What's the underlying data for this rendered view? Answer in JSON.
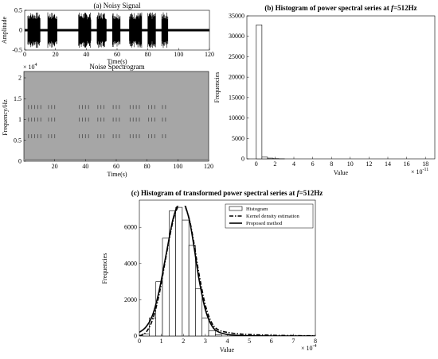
{
  "colors": {
    "axis": "#000000",
    "spectrogram_bg": "#a6a6a6",
    "spectrogram_marks": "#555555",
    "bar_fill": "#ffffff",
    "signal": "#000000"
  },
  "chart_data": [
    {
      "id": "a",
      "type": "line",
      "title": "(a) Noisy Signal",
      "xlabel": "Time(s)",
      "ylabel": "Amplitude",
      "xlim": [
        0,
        120
      ],
      "ylim": [
        -0.5,
        0.5
      ],
      "xticks": [
        0,
        20,
        40,
        60,
        80,
        100,
        120
      ],
      "yticks": [
        -0.5,
        0,
        0.5
      ],
      "burst_groups_seconds": [
        [
          2,
          10
        ],
        [
          15,
          21
        ],
        [
          35,
          43
        ],
        [
          47,
          53
        ],
        [
          57,
          62
        ],
        [
          68,
          76
        ],
        [
          80,
          85
        ],
        [
          89,
          93
        ]
      ],
      "burst_amplitude": 0.45,
      "baseline_noise_amplitude": 0.03
    },
    {
      "id": "spectrogram",
      "type": "heatmap",
      "title": "Noise Spectrogram",
      "xlabel": "Time(s)",
      "ylabel": "Frequency/Hz",
      "xlim": [
        0,
        120
      ],
      "ylim": [
        0,
        20000
      ],
      "xticks": [
        20,
        40,
        60,
        80,
        100,
        120
      ],
      "yticks": [
        0,
        0.5,
        1,
        1.5,
        2
      ],
      "y_exponent": "× 10",
      "y_exponent_power": "4",
      "mark_rows_x10e4": [
        0.6,
        1.0,
        1.3
      ],
      "mark_times_seconds": [
        3,
        5,
        7,
        9,
        11,
        16,
        18,
        20,
        36,
        38,
        40,
        42,
        48,
        50,
        52,
        58,
        60,
        62,
        69,
        71,
        73,
        75,
        81,
        83,
        85,
        90,
        92
      ]
    },
    {
      "id": "b",
      "type": "bar",
      "title": "(b) Histogram of power spectral series at f=512Hz",
      "title_prefix": "(b) Histogram of power spectral series at ",
      "title_var": "f",
      "title_suffix": "=512Hz",
      "xlabel": "Value",
      "ylabel": "Frequencies",
      "xlim": [
        -1,
        19
      ],
      "ylim": [
        0,
        35000
      ],
      "xticks": [
        0,
        2,
        4,
        6,
        8,
        10,
        12,
        14,
        16,
        18
      ],
      "yticks": [
        0,
        5000,
        10000,
        15000,
        20000,
        25000,
        30000,
        35000
      ],
      "x_exponent": "× 10",
      "x_exponent_power": "-11",
      "bin_width": 0.6,
      "bin_centers": [
        0.3,
        0.9,
        1.5,
        2.1,
        2.7
      ],
      "values": [
        32800,
        420,
        180,
        60,
        20
      ]
    },
    {
      "id": "c",
      "type": "bar",
      "title": "(c) Histogram of transformed power spectral series at f=512Hz",
      "title_prefix": "(c) Histogram of transformed power spectral series at ",
      "title_var": "f",
      "title_suffix": "=512Hz",
      "xlabel": "Value",
      "ylabel": "Frequencies",
      "xlim": [
        0,
        8
      ],
      "ylim": [
        0,
        7500
      ],
      "xticks": [
        0,
        1,
        2,
        3,
        4,
        5,
        6,
        7,
        8
      ],
      "yticks": [
        0,
        2000,
        4000,
        6000
      ],
      "x_exponent": "× 10",
      "x_exponent_power": "-4",
      "bin_width": 0.3,
      "bin_centers": [
        0.3,
        0.6,
        0.9,
        1.2,
        1.5,
        1.8,
        2.1,
        2.4,
        2.7,
        3.0,
        3.3,
        3.6
      ],
      "values": [
        120,
        1000,
        3000,
        5400,
        6900,
        7100,
        6400,
        5000,
        2600,
        1000,
        280,
        60
      ],
      "legend": [
        "Histogram",
        "Kernel density estimation",
        "Proposed method"
      ],
      "legend_position": "top-right",
      "kde": {
        "x": [
          0,
          0.3,
          0.6,
          0.9,
          1.2,
          1.5,
          1.7,
          1.9,
          2.0,
          2.1,
          2.3,
          2.5,
          2.7,
          3.0,
          3.3,
          3.6,
          4.0,
          4.5,
          5.0,
          6.0,
          7.0,
          8.0
        ],
        "y": [
          0,
          200,
          900,
          2300,
          4300,
          6200,
          7000,
          7350,
          7300,
          7100,
          6300,
          5000,
          3500,
          1700,
          700,
          330,
          200,
          120,
          80,
          40,
          20,
          10
        ]
      },
      "proposed": {
        "x": [
          0,
          0.3,
          0.6,
          0.9,
          1.2,
          1.5,
          1.7,
          1.9,
          2.0,
          2.1,
          2.3,
          2.5,
          2.7,
          3.0,
          3.3,
          3.6,
          4.0,
          4.5,
          5.0,
          6.0,
          7.0,
          8.0
        ],
        "y": [
          200,
          500,
          1150,
          2500,
          4400,
          6300,
          7100,
          7450,
          7400,
          7150,
          6250,
          4800,
          3200,
          1450,
          550,
          220,
          80,
          30,
          10,
          0,
          0,
          0
        ]
      }
    }
  ]
}
